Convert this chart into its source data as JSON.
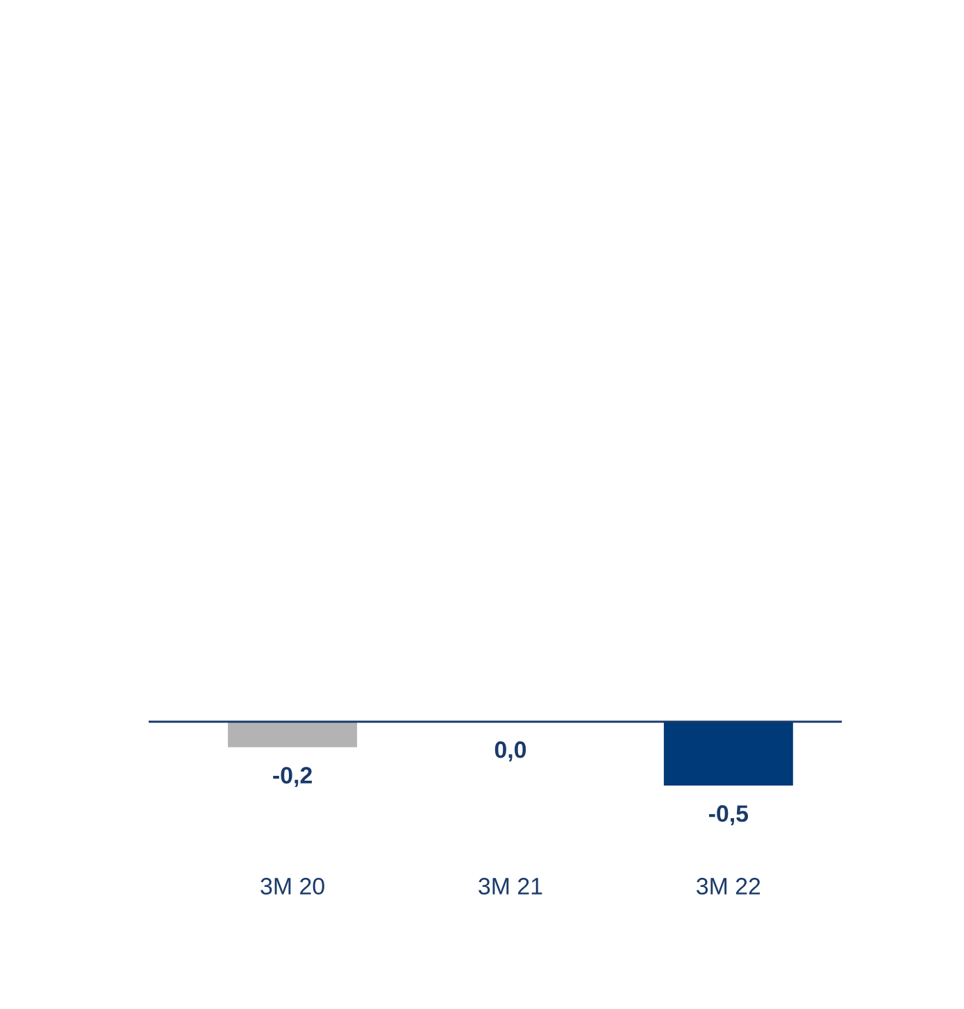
{
  "chart_data": {
    "type": "bar",
    "categories": [
      "3M 20",
      "3M 21",
      "3M 22"
    ],
    "values": [
      -0.2,
      0.0,
      -0.5
    ],
    "colors": [
      "#b3b3b3",
      "#003a78",
      "#003a78"
    ],
    "value_labels": [
      "-0,2",
      "0,0",
      "-0,5"
    ]
  }
}
